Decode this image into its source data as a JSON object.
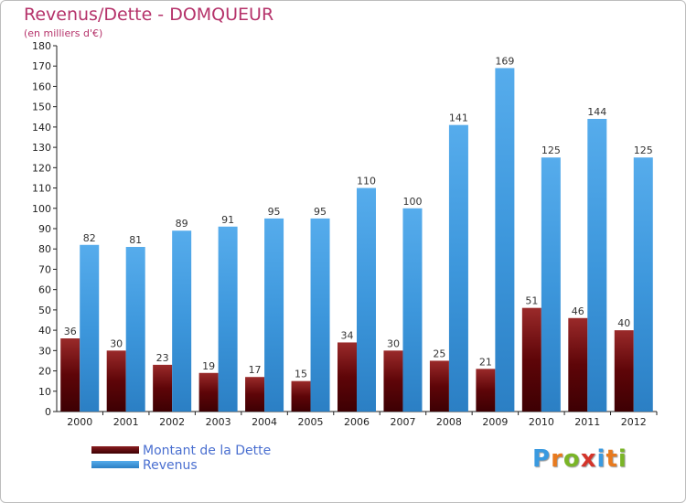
{
  "chart_data": {
    "type": "bar",
    "title": "Revenus/Dette - DOMQUEUR",
    "subtitle": "(en milliers d'€)",
    "categories": [
      "2000",
      "2001",
      "2002",
      "2003",
      "2004",
      "2005",
      "2006",
      "2007",
      "2008",
      "2009",
      "2010",
      "2011",
      "2012"
    ],
    "series": [
      {
        "name": "Montant de la Dette",
        "color": "#6b0a0f",
        "values": [
          36,
          30,
          23,
          19,
          17,
          15,
          34,
          30,
          25,
          21,
          51,
          46,
          40
        ]
      },
      {
        "name": "Revenus",
        "color": "#3a9ae0",
        "values": [
          82,
          81,
          89,
          91,
          95,
          95,
          110,
          100,
          141,
          169,
          125,
          144,
          125
        ]
      }
    ],
    "ylim": [
      0,
      180
    ],
    "ytick_step": 10,
    "grid": false,
    "legend_position": "bottom-left"
  },
  "brand": {
    "letters": [
      "P",
      "r",
      "o",
      "x",
      "i",
      "t",
      "i"
    ],
    "colors": [
      "#3a9ae0",
      "#e87a1e",
      "#7ab527",
      "#d4342a",
      "#3a9ae0",
      "#e87a1e",
      "#7ab527"
    ]
  }
}
